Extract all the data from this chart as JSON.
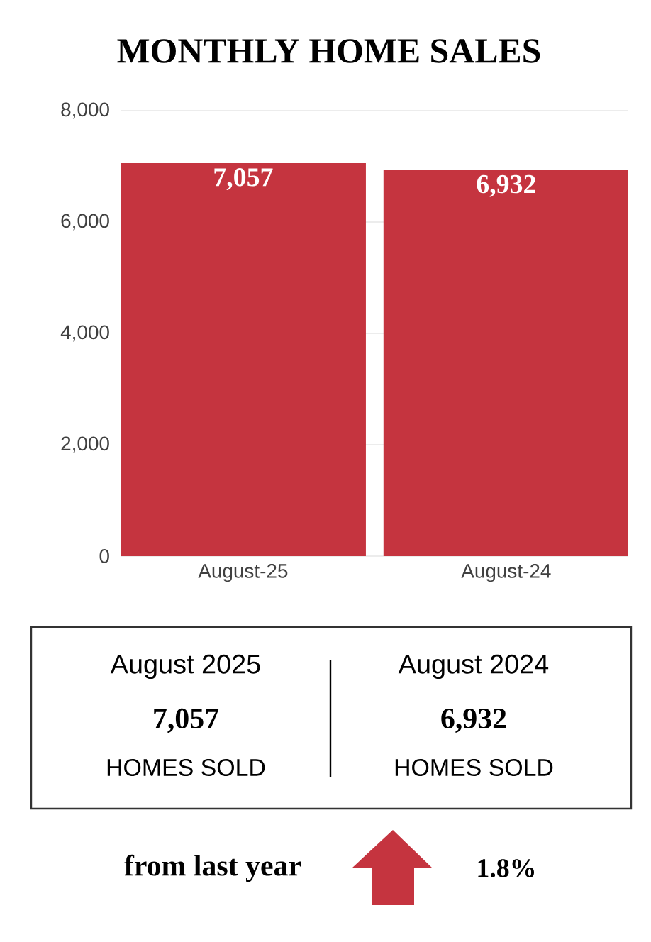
{
  "chart_data": {
    "type": "bar",
    "title": "MONTHLY HOME SALES",
    "categories": [
      "August-25",
      "August-24"
    ],
    "values": [
      7057,
      6932
    ],
    "color": "#c5343f",
    "value_labels": [
      "7,057",
      "6,932"
    ],
    "ylim": [
      0,
      8000
    ],
    "yticks": [
      0,
      {
        "value": 2000,
        "label": "2,000"
      },
      {
        "value": 4000,
        "label": "4,000"
      },
      {
        "value": 6000,
        "label": "6,000"
      },
      {
        "value": 8000,
        "label": "8,000"
      }
    ],
    "grid": "y",
    "annotations": [
      "August 2025",
      "7,057",
      "HOMES SOLD",
      "August 2024",
      "6,932",
      "HOMES SOLD",
      "from last year",
      "1.8%"
    ]
  }
}
